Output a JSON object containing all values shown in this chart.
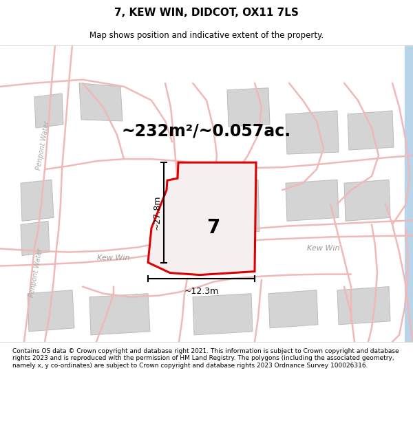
{
  "title": "7, KEW WIN, DIDCOT, OX11 7LS",
  "subtitle": "Map shows position and indicative extent of the property.",
  "area_text": "~232m²/~0.057ac.",
  "dim_width": "~12.3m",
  "dim_height": "~27.8m",
  "plot_number": "7",
  "footer": "Contains OS data © Crown copyright and database right 2021. This information is subject to Crown copyright and database rights 2023 and is reproduced with the permission of HM Land Registry. The polygons (including the associated geometry, namely x, y co-ordinates) are subject to Crown copyright and database rights 2023 Ordnance Survey 100026316.",
  "map_bg": "#f2f0ed",
  "road_color": "#f0b8b8",
  "road_color2": "#c8c8c8",
  "highlight_color": "#dd0000",
  "building_fill": "#d4d4d4",
  "building_edge": "#bbbbbb",
  "title_fontsize": 11,
  "subtitle_fontsize": 8.5,
  "area_fontsize": 17
}
